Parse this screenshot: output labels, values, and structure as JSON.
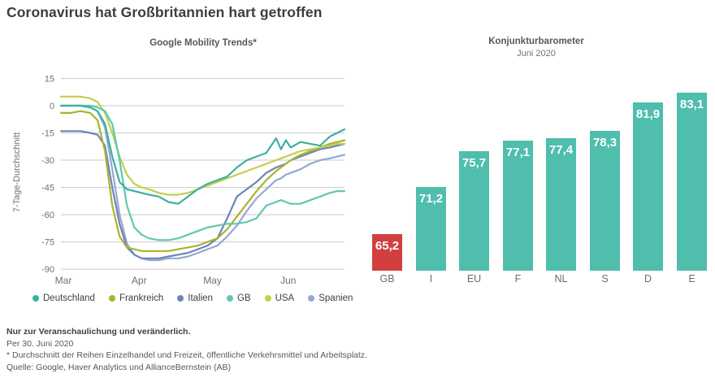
{
  "page": {
    "title": "Coronavirus hat Großbritannien hart getroffen",
    "background": "#ffffff",
    "title_color": "#3c3d3f"
  },
  "chart_data": [
    {
      "id": "mobility",
      "type": "line",
      "title": "Google Mobility Trends*",
      "ylabel": "7-Tage-Durchschnitt",
      "ylim": [
        -90,
        15
      ],
      "yticks": [
        15,
        0,
        -15,
        -30,
        -45,
        -60,
        -75,
        -90
      ],
      "grid": "horizontal-gridlines-on",
      "grid_color": "#c9cacc",
      "axis_text_color": "#6e7072",
      "x_tick_labels": [
        "Mar",
        "Apr",
        "May",
        "Jun"
      ],
      "x_unit": "days-since-Mar-1",
      "x_domain": [
        0,
        116
      ],
      "month_tick_days": [
        1,
        32,
        62,
        93
      ],
      "legend_position": "bottom",
      "legend_order": [
        "Deutschland",
        "Frankreich",
        "Italien",
        "GB",
        "USA",
        "Spanien"
      ],
      "draw_order": [
        "Spanien",
        "Italien",
        "Frankreich",
        "USA",
        "GB",
        "Deutschland"
      ],
      "days": [
        0,
        4,
        8,
        12,
        15,
        18,
        21,
        24,
        27,
        30,
        33,
        36,
        40,
        44,
        48,
        52,
        56,
        60,
        64,
        68,
        72,
        76,
        80,
        84,
        88,
        90,
        92,
        94,
        98,
        102,
        106,
        110,
        113,
        116
      ],
      "series": [
        {
          "name": "Deutschland",
          "color": "#3bb0a1",
          "values": [
            0,
            0,
            0,
            -1,
            -3,
            -10,
            -28,
            -42,
            -46,
            -47,
            -48,
            -49,
            -50,
            -53,
            -54,
            -50,
            -46,
            -43,
            -41,
            -39,
            -34,
            -30,
            -28,
            -26,
            -18,
            -24,
            -19,
            -23,
            -20,
            -21,
            -22,
            -17,
            -15,
            -13
          ]
        },
        {
          "name": "Frankreich",
          "color": "#a8b42e",
          "values": [
            -4,
            -4,
            -3,
            -4,
            -8,
            -25,
            -55,
            -72,
            -78,
            -79,
            -80,
            -80,
            -80,
            -80,
            -79,
            -78,
            -77,
            -75,
            -73,
            -68,
            -61,
            -54,
            -47,
            -41,
            -36,
            -34,
            -32,
            -30,
            -27,
            -25,
            -23,
            -21,
            -20,
            -19
          ]
        },
        {
          "name": "Italien",
          "color": "#6d84b8",
          "values": [
            -14,
            -14,
            -14,
            -15,
            -16,
            -22,
            -45,
            -65,
            -78,
            -82,
            -84,
            -84,
            -84,
            -83,
            -82,
            -81,
            -79,
            -77,
            -73,
            -62,
            -50,
            -46,
            -42,
            -37,
            -34,
            -33,
            -32,
            -30,
            -28,
            -26,
            -24,
            -23,
            -22,
            -21
          ]
        },
        {
          "name": "GB",
          "color": "#62c6b4",
          "values": [
            0,
            0,
            0,
            0,
            -1,
            -3,
            -10,
            -30,
            -55,
            -67,
            -71,
            -73,
            -74,
            -74,
            -73,
            -71,
            -69,
            -67,
            -66,
            -65,
            -65,
            -64,
            -62,
            -55,
            -53,
            -52,
            -53,
            -54,
            -54,
            -52,
            -50,
            -48,
            -47,
            -47
          ]
        },
        {
          "name": "USA",
          "color": "#c4ce4b",
          "values": [
            5,
            5,
            5,
            4,
            2,
            -4,
            -15,
            -28,
            -38,
            -43,
            -45,
            -46,
            -48,
            -49,
            -49,
            -48,
            -46,
            -44,
            -42,
            -40,
            -38,
            -36,
            -34,
            -32,
            -30,
            -29,
            -28,
            -27,
            -25,
            -24,
            -23,
            -22,
            -21,
            -21
          ]
        },
        {
          "name": "Spanien",
          "color": "#94a7d4",
          "values": [
            0,
            0,
            0,
            -1,
            -3,
            -12,
            -35,
            -60,
            -76,
            -82,
            -84,
            -85,
            -85,
            -84,
            -84,
            -83,
            -81,
            -79,
            -77,
            -72,
            -66,
            -58,
            -51,
            -46,
            -41,
            -40,
            -38,
            -37,
            -35,
            -32,
            -30,
            -29,
            -28,
            -27
          ]
        }
      ]
    },
    {
      "id": "barometer",
      "type": "bar",
      "title": "Konjunkturbarometer",
      "subtitle": "Juni 2020",
      "categories": [
        "GB",
        "I",
        "EU",
        "F",
        "NL",
        "S",
        "D",
        "E"
      ],
      "values": [
        65.2,
        71.2,
        75.7,
        77.1,
        77.4,
        78.3,
        81.9,
        83.1
      ],
      "value_labels": [
        "65,2",
        "71,2",
        "75,7",
        "77,1",
        "77,4",
        "78,3",
        "81,9",
        "83,1"
      ],
      "bar_color": "#4fbeac",
      "highlight_color": "#d23f3f",
      "highlighted_category": "GB",
      "baseline_value": 60.6,
      "grid": "off",
      "axis_visible": false,
      "value_label_position": "inside-top",
      "value_label_color": "#ffffff",
      "category_label_color": "#6b6c6e"
    }
  ],
  "footnotes": {
    "disclaimer": "Nur zur Veranschaulichung und veränderlich.",
    "as_of": "Per 30. Juni 2020",
    "footnote": "* Durchschnitt der Reihen Einzelhandel und Freizeit, öffentliche Verkehrsmittel und Arbeitsplatz.",
    "source": "Quelle: Google, Haver Analytics und AllianceBernstein (AB)"
  }
}
